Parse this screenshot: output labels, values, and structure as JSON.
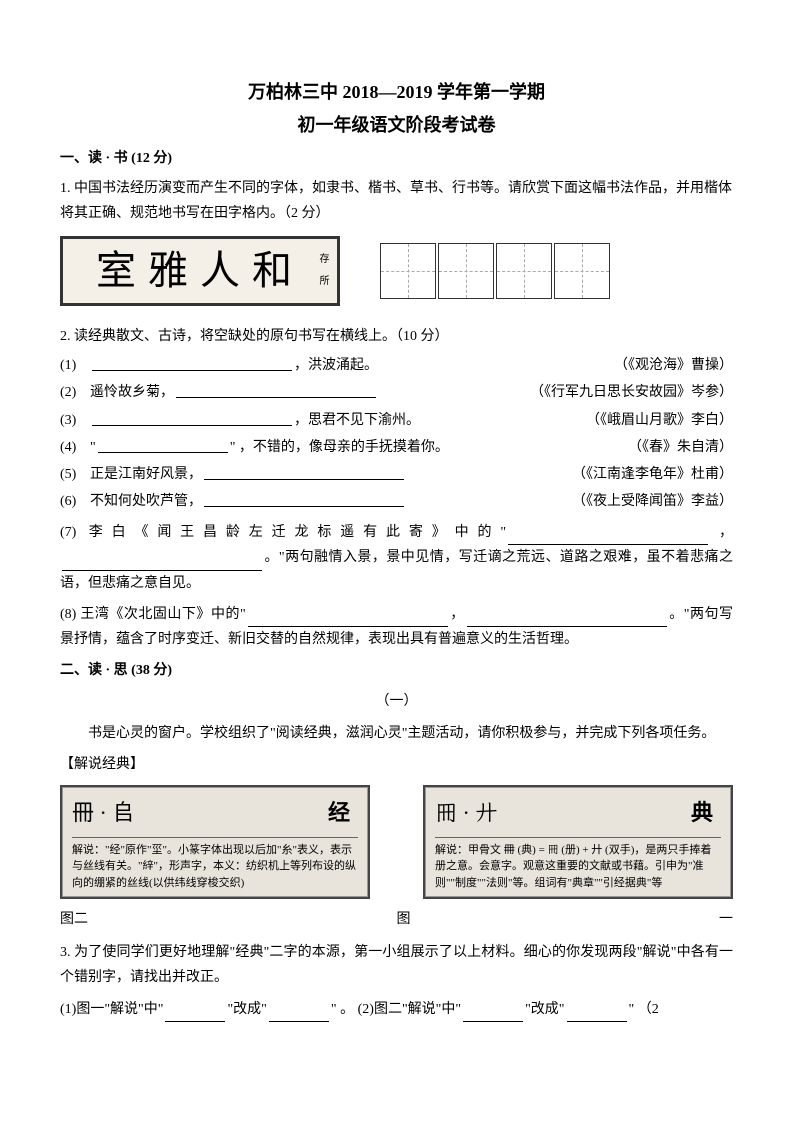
{
  "header": {
    "title_line1": "万柏林三中 2018—2019 学年第一学期",
    "title_line2": "初一年级语文阶段考试卷"
  },
  "section1": {
    "header": "一、读 · 书 (12 分)",
    "q1": {
      "text": "1. 中国书法经历演变而产生不同的字体，如隶书、楷书、草书、行书等。请欣赏下面这幅书法作品，并用楷体将其正确、规范地书写在田字格内。（2 分）",
      "calligraphy": "室雅人和",
      "seal": "存所"
    },
    "q2": {
      "text": "2. 读经典散文、古诗，将空缺处的原句书写在横线上。（10 分）",
      "items": [
        {
          "n": "(1)",
          "after": "，洪波涌起。",
          "src": "（《观沧海》曹操）"
        },
        {
          "n": "(2)",
          "before": "遥怜故乡菊，",
          "src": "（《行军九日思长安故园》岑参）"
        },
        {
          "n": "(3)",
          "after": "，思君不见下渝州。",
          "src": "（《峨眉山月歌》李白）"
        },
        {
          "n": "(4)",
          "before": "\"",
          "after": "\" ，不错的，像母亲的手抚摸着你。",
          "src": "（《春》朱自清）"
        },
        {
          "n": "(5)",
          "before": "正是江南好风景，",
          "src": "（《江南逢李龟年》杜甫）"
        },
        {
          "n": "(6)",
          "before": "不知何处吹芦管，",
          "src": "（《夜上受降闻笛》李益）"
        }
      ],
      "q7": "(7) 李白《闻王昌龄左迁龙标遥有此寄》中的\"",
      "q7_tail": "。\"两句融情入景，景中见情，写迁谪之荒远、道路之艰难，虽不着悲痛之语，但悲痛之意自见。",
      "q8": "(8) 王湾《次北固山下》中的\"",
      "q8_mid": "，",
      "q8_tail": "。\"两句写景抒情，蕴含了时序变迁、新旧交替的自然规律，表现出具有普遍意义的生活哲理。"
    }
  },
  "section2": {
    "header": "二、读 · 思 (38 分)",
    "sub": "（一）",
    "intro": "书是心灵的窗户。学校组织了\"阅读经典，滋润心灵\"主题活动，请你积极参与，并完成下列各项任务。",
    "label": "【解说经典】",
    "box1": {
      "char": "经",
      "icons": "冊 · 𠂤",
      "body": "解说：\"经\"原作\"坙\"。小篆字体出现以后加\"糸\"表义，表示与丝线有关。\"𦀓\"，形声字，本义：纺织机上等列布设的纵向的绷紧的丝线(以供纬线穿梭交织)"
    },
    "box2": {
      "char": "典",
      "icons": "𠕁 · 廾",
      "body": "解说：甲骨文 𠕋 (典) = 𠕁 (册) + 廾 (双手)，是两只手捧着册之意。会意字。观意这重要的文献或书藉。引申为\"准则\"\"制度\"\"法则\"等。组词有\"典章\"\"引经据典\"等"
    },
    "captions": {
      "left": "图二",
      "right_l": "图",
      "right_r": "一"
    },
    "q3": {
      "text": "3. 为了使同学们更好地理解\"经典\"二字的本源，第一小组展示了以上材料。细心的你发现两段\"解说\"中各有一个错别字，请找出并改正。",
      "sub1_a": "(1)图一\"解说\"中\"",
      "sub1_b": "\"改成\"",
      "sub1_c": "\" 。",
      "sub2_a": "(2)图二\"解说\"中\"",
      "sub2_b": "\"改成\"",
      "sub2_c": "\"  （2"
    }
  },
  "style": {
    "page_bg": "#ffffff",
    "text_color": "#000000",
    "box_bg": "#e8e4dc",
    "calligraphy_bg": "#f4f0e8",
    "border_color": "#333333",
    "font_size_body": 14,
    "font_size_title": 18,
    "font_size_box": 11
  }
}
